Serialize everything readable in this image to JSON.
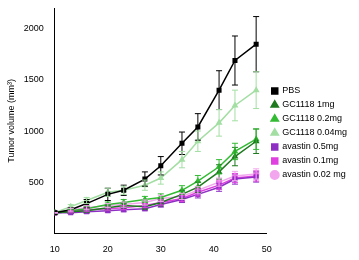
{
  "chart_data": {
    "type": "line",
    "y_label": "Tumor volume (mm³)",
    "x": [
      10,
      13,
      16,
      20,
      23,
      27,
      30,
      34,
      37,
      41,
      44,
      48
    ],
    "xlim": [
      10,
      50
    ],
    "xticks": [
      10,
      20,
      30,
      40,
      50
    ],
    "ylim": [
      0,
      2200
    ],
    "yticks": [
      500,
      1000,
      1500,
      2000
    ],
    "grid": false,
    "legend": "right",
    "series": [
      {
        "name": "PBS",
        "color": "#000000",
        "marker": "square",
        "values": [
          200,
          230,
          290,
          380,
          420,
          530,
          660,
          880,
          1040,
          1400,
          1690,
          1850
        ],
        "errors": [
          0,
          20,
          40,
          60,
          50,
          70,
          90,
          110,
          130,
          190,
          240,
          270
        ]
      },
      {
        "name": "GC1118 1mg",
        "color": "#1e7a1e",
        "marker": "triangle",
        "values": [
          200,
          210,
          220,
          250,
          270,
          260,
          300,
          380,
          450,
          600,
          750,
          900
        ],
        "errors": [
          0,
          15,
          20,
          25,
          25,
          30,
          35,
          40,
          50,
          70,
          90,
          120
        ]
      },
      {
        "name": "GC1118 0.2mg",
        "color": "#33bb33",
        "marker": "triangle",
        "values": [
          200,
          220,
          240,
          280,
          300,
          330,
          350,
          420,
          510,
          650,
          800,
          920
        ],
        "errors": [
          0,
          15,
          20,
          25,
          30,
          30,
          35,
          45,
          55,
          70,
          80,
          100
        ]
      },
      {
        "name": "GC1118 0.04mg",
        "color": "#a3dea3",
        "marker": "triangle",
        "values": [
          200,
          260,
          320,
          400,
          420,
          470,
          540,
          720,
          900,
          1080,
          1250,
          1400
        ],
        "errors": [
          0,
          20,
          30,
          40,
          40,
          50,
          60,
          80,
          100,
          130,
          150,
          180
        ]
      },
      {
        "name": "avastin 0.5mg",
        "color": "#8e2fc4",
        "marker": "square",
        "values": [
          200,
          200,
          210,
          220,
          230,
          240,
          280,
          330,
          380,
          450,
          530,
          550
        ],
        "errors": [
          0,
          10,
          15,
          15,
          20,
          20,
          25,
          30,
          35,
          40,
          50,
          50
        ]
      },
      {
        "name": "avastin 0.1mg",
        "color": "#e040e0",
        "marker": "square",
        "values": [
          200,
          210,
          230,
          240,
          250,
          270,
          300,
          340,
          400,
          470,
          540,
          560
        ],
        "errors": [
          0,
          10,
          15,
          15,
          20,
          20,
          25,
          30,
          35,
          40,
          45,
          50
        ]
      },
      {
        "name": "avastin 0.02 mg",
        "color": "#f2a6ee",
        "marker": "circle",
        "values": [
          200,
          230,
          250,
          270,
          280,
          300,
          340,
          360,
          420,
          500,
          560,
          580
        ],
        "errors": [
          0,
          15,
          20,
          20,
          25,
          25,
          30,
          30,
          35,
          40,
          45,
          50
        ]
      }
    ]
  }
}
